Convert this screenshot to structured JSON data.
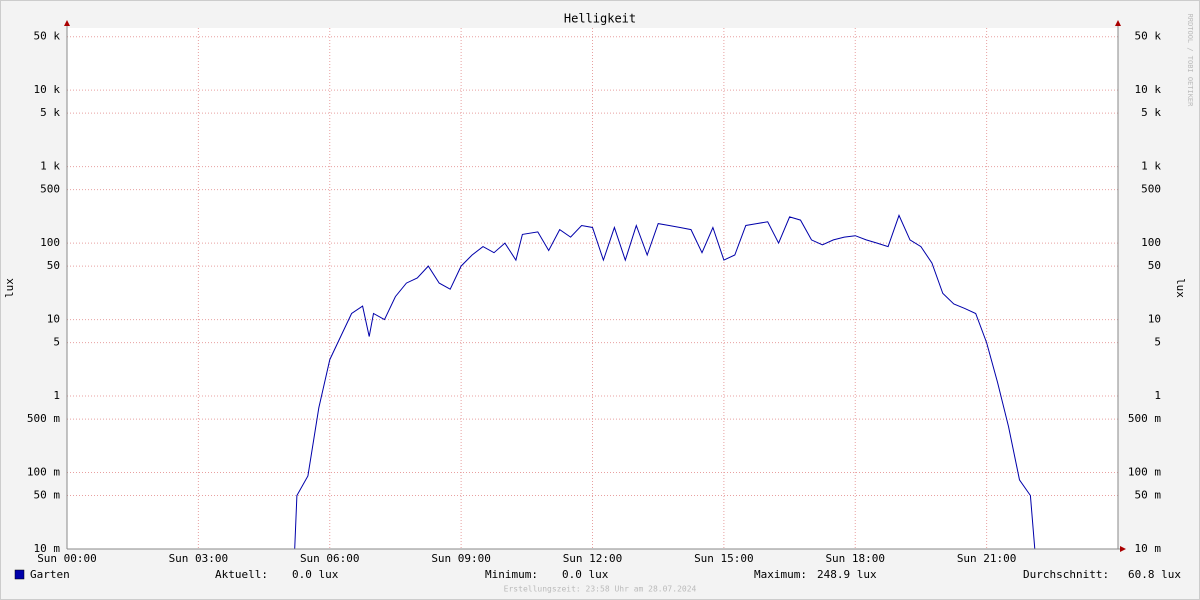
{
  "chart_data": {
    "type": "line",
    "title": "Helligkeit",
    "y_label": "lux",
    "watermark": "RRDTOOL / TOBI OETIKER",
    "log_scale": true,
    "grid": true,
    "xlim": [
      0,
      24
    ],
    "xticks": [
      {
        "value": 0,
        "label": "Sun 00:00"
      },
      {
        "value": 3,
        "label": "Sun 03:00"
      },
      {
        "value": 6,
        "label": "Sun 06:00"
      },
      {
        "value": 9,
        "label": "Sun 09:00"
      },
      {
        "value": 12,
        "label": "Sun 12:00"
      },
      {
        "value": 15,
        "label": "Sun 15:00"
      },
      {
        "value": 18,
        "label": "Sun 18:00"
      },
      {
        "value": 21,
        "label": "Sun 21:00"
      }
    ],
    "ylim": [
      0.01,
      65000
    ],
    "yticks": [
      {
        "value": 0.01,
        "label": "10 m"
      },
      {
        "value": 0.05,
        "label": "50 m"
      },
      {
        "value": 0.1,
        "label": "100 m"
      },
      {
        "value": 0.5,
        "label": "500 m"
      },
      1,
      5,
      10,
      50,
      100,
      500,
      {
        "value": 1000,
        "label": "1 k"
      },
      {
        "value": 5000,
        "label": "5 k"
      },
      {
        "value": 10000,
        "label": "10 k"
      },
      {
        "value": 50000,
        "label": "50 k"
      }
    ],
    "x": [
      0,
      5.2,
      5.25,
      5.5,
      5.75,
      6.0,
      6.25,
      6.5,
      6.75,
      6.9,
      7.0,
      7.25,
      7.5,
      7.75,
      8.0,
      8.25,
      8.5,
      8.75,
      9.0,
      9.25,
      9.5,
      9.75,
      10.0,
      10.25,
      10.4,
      10.75,
      11.0,
      11.25,
      11.5,
      11.75,
      12.0,
      12.25,
      12.5,
      12.75,
      13.0,
      13.25,
      13.5,
      13.75,
      14.0,
      14.25,
      14.5,
      14.75,
      15.0,
      15.25,
      15.5,
      15.75,
      16.0,
      16.25,
      16.5,
      16.75,
      17.0,
      17.25,
      17.5,
      17.75,
      18.0,
      18.25,
      18.5,
      18.75,
      19.0,
      19.25,
      19.5,
      19.75,
      20.0,
      20.25,
      20.5,
      20.75,
      21.0,
      21.25,
      21.5,
      21.75,
      22.0,
      22.1,
      24
    ],
    "series": [
      {
        "name": "Garten",
        "color": "#0000aa",
        "values": [
          0,
          0,
          0.05,
          0.09,
          0.7,
          3,
          6,
          12,
          15,
          6,
          12,
          10,
          20,
          30,
          35,
          50,
          30,
          25,
          50,
          70,
          90,
          75,
          100,
          60,
          130,
          140,
          80,
          150,
          120,
          170,
          160,
          60,
          160,
          60,
          170,
          70,
          180,
          170,
          160,
          150,
          75,
          160,
          60,
          70,
          170,
          180,
          190,
          100,
          220,
          200,
          110,
          95,
          110,
          120,
          125,
          110,
          100,
          90,
          230,
          110,
          90,
          55,
          22,
          16,
          14,
          12,
          5,
          1.5,
          0.4,
          0.08,
          0.05,
          0,
          0
        ]
      }
    ],
    "stats": [
      {
        "label": "Aktuell:",
        "value": "0.0 lux"
      },
      {
        "label": "Minimum:",
        "value": "0.0 lux"
      },
      {
        "label": "Maximum:",
        "value": "248.9 lux"
      },
      {
        "label": "Durchschnitt:",
        "value": "60.8 lux"
      }
    ],
    "footer": "Erstellungszeit: 23:58 Uhr am 28.07.2024"
  }
}
